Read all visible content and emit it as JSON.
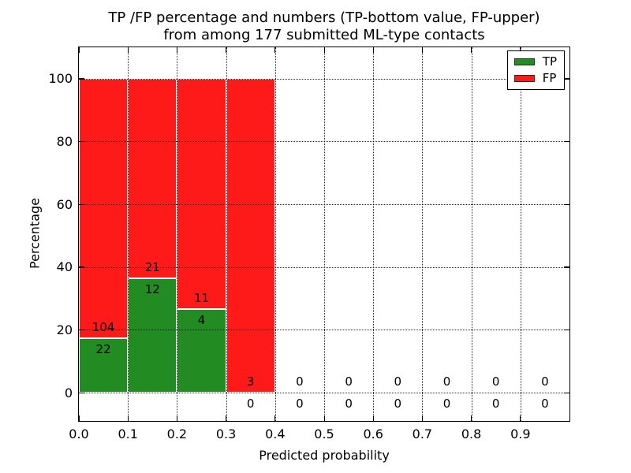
{
  "title": {
    "line1": "TP /FP percentage and numbers (TP-bottom value, FP-upper)",
    "line2": "from among 177 submitted ML-type contacts"
  },
  "axes": {
    "xlabel": "Predicted probability",
    "ylabel": "Percentage",
    "xlim": [
      0,
      1.0
    ],
    "ylim": [
      -9,
      110
    ],
    "x_ticks": [
      {
        "label": "0.0",
        "value": 0.0
      },
      {
        "label": "0.1",
        "value": 0.1
      },
      {
        "label": "0.2",
        "value": 0.2
      },
      {
        "label": "0.3",
        "value": 0.3
      },
      {
        "label": "0.4",
        "value": 0.4
      },
      {
        "label": "0.5",
        "value": 0.5
      },
      {
        "label": "0.6",
        "value": 0.6
      },
      {
        "label": "0.7",
        "value": 0.7
      },
      {
        "label": "0.8",
        "value": 0.8
      },
      {
        "label": "0.9",
        "value": 0.9
      }
    ],
    "y_ticks": [
      {
        "label": "0",
        "value": 0
      },
      {
        "label": "20",
        "value": 20
      },
      {
        "label": "40",
        "value": 40
      },
      {
        "label": "60",
        "value": 60
      },
      {
        "label": "80",
        "value": 80
      },
      {
        "label": "100",
        "value": 100
      }
    ],
    "grid": true
  },
  "legend": {
    "items": [
      {
        "label": "TP",
        "color": "#228B22"
      },
      {
        "label": "FP",
        "color": "#FF1A1A"
      }
    ]
  },
  "chart_data": {
    "type": "bar",
    "subtype": "stacked-percentage-histogram",
    "total_contacts": 177,
    "bin_edges": [
      0.0,
      0.1,
      0.2,
      0.3,
      0.4,
      0.5,
      0.6,
      0.7,
      0.8,
      0.9,
      1.0
    ],
    "categories": [
      "0.0-0.1",
      "0.1-0.2",
      "0.2-0.3",
      "0.3-0.4",
      "0.4-0.5",
      "0.5-0.6",
      "0.6-0.7",
      "0.7-0.8",
      "0.8-0.9",
      "0.9-1.0"
    ],
    "series": [
      {
        "name": "TP",
        "color": "#228B22",
        "counts": [
          22,
          12,
          4,
          0,
          0,
          0,
          0,
          0,
          0,
          0
        ],
        "percent": [
          17.46,
          36.36,
          26.67,
          0,
          0,
          0,
          0,
          0,
          0,
          0
        ]
      },
      {
        "name": "FP",
        "color": "#FF1A1A",
        "counts": [
          104,
          21,
          11,
          3,
          0,
          0,
          0,
          0,
          0,
          0
        ],
        "percent": [
          82.54,
          63.64,
          73.33,
          100,
          0,
          0,
          0,
          0,
          0,
          0
        ]
      }
    ],
    "annotation_note": "FP count drawn above TP/FP boundary, TP count drawn below it",
    "grid_style": "dotted",
    "bar_edge_color": "#ffffff",
    "legend_position": "upper right"
  }
}
